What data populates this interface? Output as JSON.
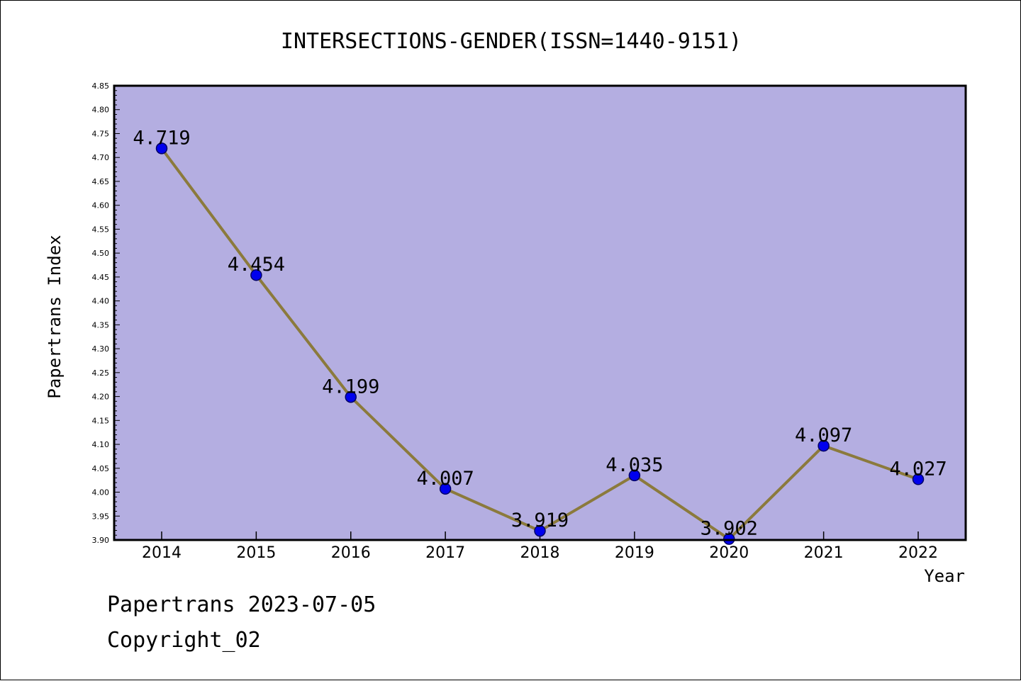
{
  "chart_data": {
    "type": "line",
    "title": "INTERSECTIONS-GENDER(ISSN=1440-9151)",
    "xlabel": "Year",
    "ylabel": "Papertrans Index",
    "categories": [
      "2014",
      "2015",
      "2016",
      "2017",
      "2018",
      "2019",
      "2020",
      "2021",
      "2022"
    ],
    "values": [
      4.719,
      4.454,
      4.199,
      4.007,
      3.919,
      4.035,
      3.902,
      4.097,
      4.027
    ],
    "data_labels": [
      "4.719",
      "4.454",
      "4.199",
      "4.007",
      "3.919",
      "4.035",
      "3.902",
      "4.097",
      "4.027"
    ],
    "ylim": [
      3.9,
      4.85
    ],
    "yticks": [
      "3.90",
      "3.95",
      "4.00",
      "4.05",
      "4.10",
      "4.15",
      "4.20",
      "4.25",
      "4.30",
      "4.35",
      "4.40",
      "4.45",
      "4.50",
      "4.55",
      "4.60",
      "4.65",
      "4.70",
      "4.75",
      "4.80",
      "4.85"
    ],
    "grid": false,
    "legend": "none",
    "colors": {
      "plot_background": "#b4aee1",
      "line": "#8b7a3c",
      "marker": "#0000ee",
      "marker_edge": "#000066",
      "frame": "#000000"
    }
  },
  "footer": {
    "line1": "Papertrans 2023-07-05",
    "line2": "Copyright_02"
  }
}
